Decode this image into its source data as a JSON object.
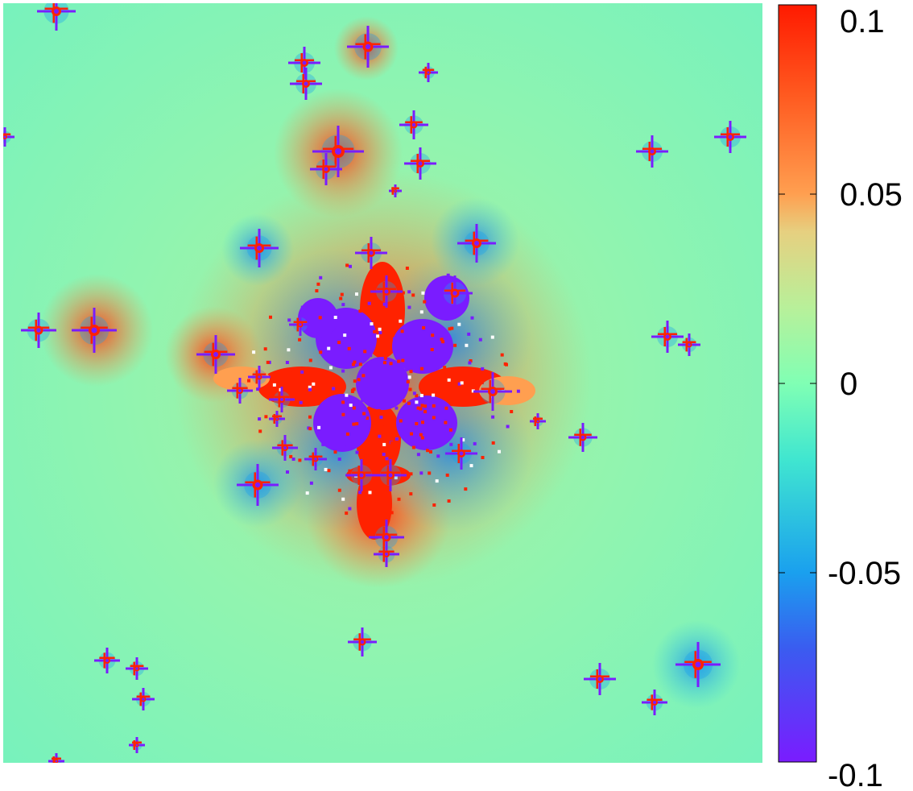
{
  "chart_data": {
    "type": "heatmap",
    "colormap": "rainbow",
    "colorbar": {
      "range": [
        -0.1,
        0.1
      ],
      "ticks": [
        0.1,
        0.05,
        0,
        -0.05,
        -0.1
      ],
      "tick_labels": [
        "0.1",
        "0.05",
        "0",
        "-0.05",
        "-0.1"
      ],
      "colors": [
        "#ff2200",
        "#ff9f50",
        "#80ffb4",
        "#1aa0ee",
        "#7a1cff"
      ]
    },
    "background_value": 0.01,
    "features": [
      {
        "x": 0.5,
        "y": 0.5,
        "value": -0.1,
        "type": "central-blob"
      },
      {
        "x": 0.5,
        "y": 0.42,
        "value": 0.1,
        "type": "lobe"
      },
      {
        "x": 0.5,
        "y": 0.62,
        "value": 0.1,
        "type": "lobe"
      },
      {
        "x": 0.4,
        "y": 0.5,
        "value": 0.1,
        "type": "lobe"
      },
      {
        "x": 0.6,
        "y": 0.5,
        "value": 0.1,
        "type": "lobe"
      }
    ]
  }
}
